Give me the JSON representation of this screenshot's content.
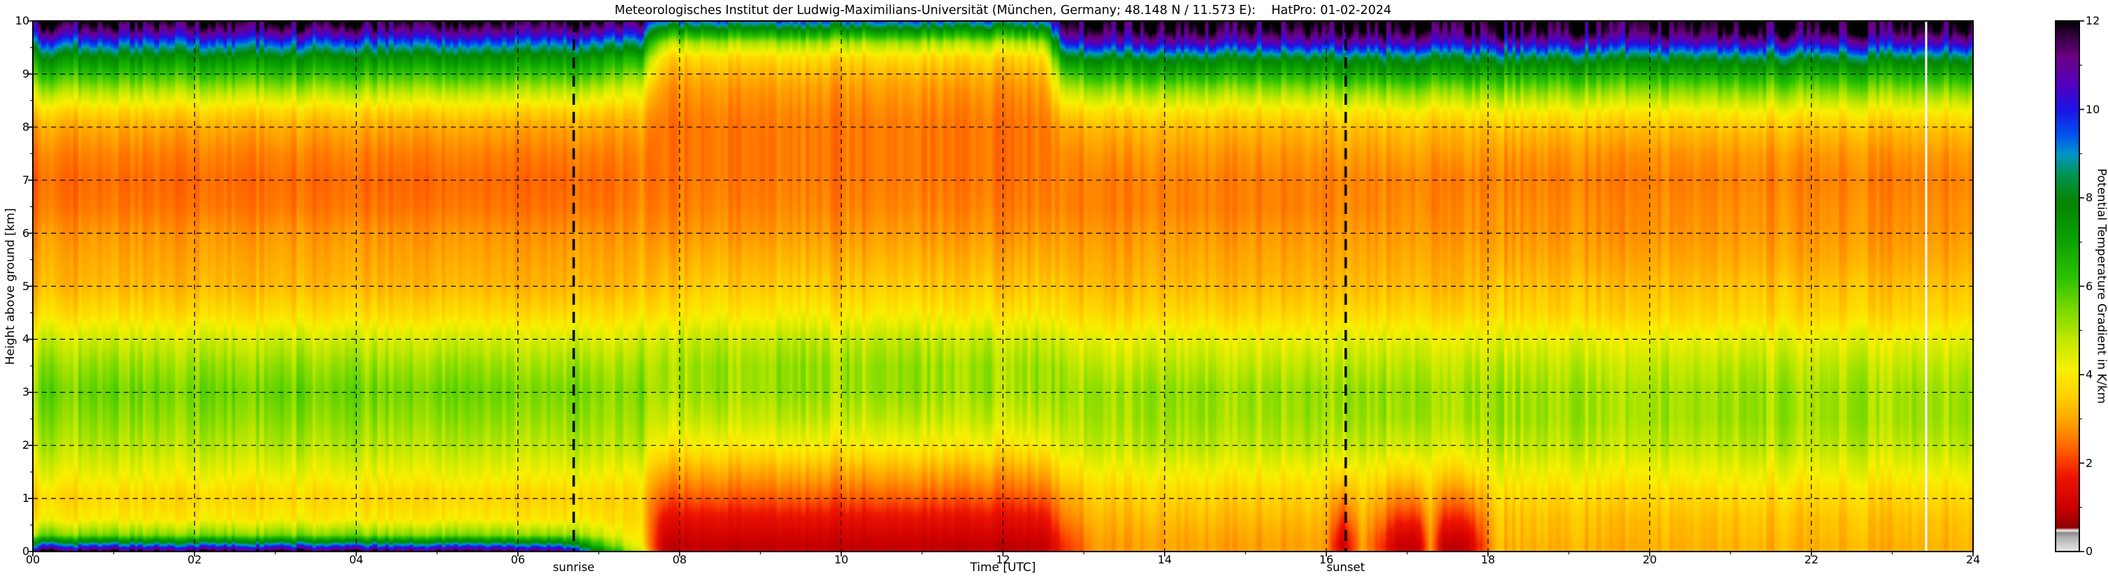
{
  "chart_data": {
    "type": "heatmap",
    "title": "Meteorologisches Institut der Ludwig-Maximilians-Universität (München, Germany; 48.148 N / 11.573 E):    HatPro: 01-02-2024",
    "xlabel": "Time [UTC]",
    "ylabel": "Height above ground [km]",
    "colorbar_label": "Potential Temperature Gradient in K/km",
    "x_range": [
      0,
      24
    ],
    "y_range": [
      0,
      10
    ],
    "colorbar_range": [
      0,
      12
    ],
    "grid_on": true,
    "x_ticks": [
      {
        "v": 0,
        "label": "00"
      },
      {
        "v": 2,
        "label": "02"
      },
      {
        "v": 4,
        "label": "04"
      },
      {
        "v": 6,
        "label": "06"
      },
      {
        "v": 8,
        "label": "08"
      },
      {
        "v": 10,
        "label": "10"
      },
      {
        "v": 12,
        "label": "12"
      },
      {
        "v": 14,
        "label": "14"
      },
      {
        "v": 16,
        "label": "16"
      },
      {
        "v": 18,
        "label": "18"
      },
      {
        "v": 20,
        "label": "20"
      },
      {
        "v": 22,
        "label": "22"
      },
      {
        "v": 24,
        "label": "24"
      }
    ],
    "y_ticks": [
      {
        "v": 0,
        "label": "0"
      },
      {
        "v": 1,
        "label": "1"
      },
      {
        "v": 2,
        "label": "2"
      },
      {
        "v": 3,
        "label": "3"
      },
      {
        "v": 4,
        "label": "4"
      },
      {
        "v": 5,
        "label": "5"
      },
      {
        "v": 6,
        "label": "6"
      },
      {
        "v": 7,
        "label": "7"
      },
      {
        "v": 8,
        "label": "8"
      },
      {
        "v": 9,
        "label": "9"
      },
      {
        "v": 10,
        "label": "10"
      }
    ],
    "colorbar_ticks": [
      {
        "v": 0,
        "label": "0"
      },
      {
        "v": 2,
        "label": "2"
      },
      {
        "v": 4,
        "label": "4"
      },
      {
        "v": 6,
        "label": "6"
      },
      {
        "v": 8,
        "label": "8"
      },
      {
        "v": 10,
        "label": "10"
      },
      {
        "v": 12,
        "label": "12"
      }
    ],
    "annotations": [
      {
        "t": 6.69,
        "label": "sunrise"
      },
      {
        "t": 16.24,
        "label": "sunset"
      }
    ],
    "missing_data_times": [
      23.42
    ],
    "colormap": [
      [
        0,
        "#e6e6e6"
      ],
      [
        0.3,
        "#b4b4b4"
      ],
      [
        0.42,
        "#8a8a8a"
      ],
      [
        0.46,
        "#ffffff"
      ],
      [
        0.52,
        "#8c0000"
      ],
      [
        1,
        "#cc0000"
      ],
      [
        1.7,
        "#ee1500"
      ],
      [
        2.3,
        "#ff6000"
      ],
      [
        2.9,
        "#ffa000"
      ],
      [
        3.5,
        "#ffd000"
      ],
      [
        4.1,
        "#f8f000"
      ],
      [
        4.8,
        "#c0e800"
      ],
      [
        5.5,
        "#76d800"
      ],
      [
        6.2,
        "#2cc200"
      ],
      [
        7.1,
        "#0aa000"
      ],
      [
        7.9,
        "#068400"
      ],
      [
        8.5,
        "#00944c"
      ],
      [
        9,
        "#0096c8"
      ],
      [
        9.4,
        "#0055f0"
      ],
      [
        10,
        "#1c14e4"
      ],
      [
        10.6,
        "#5400bc"
      ],
      [
        11.2,
        "#6c0084"
      ],
      [
        11.7,
        "#30003c"
      ],
      [
        12,
        "#000000"
      ]
    ],
    "grid": {
      "units": "K/km",
      "heights_km": [
        0,
        0.1,
        0.3,
        0.6,
        1,
        1.5,
        2,
        2.5,
        3,
        3.5,
        4,
        4.5,
        5,
        5.5,
        6,
        6.5,
        7,
        7.5,
        8,
        8.3,
        8.7,
        9,
        9.3,
        9.6,
        9.8,
        10
      ],
      "profiles": {
        "night": [
          11.8,
          9.5,
          5.5,
          4.0,
          3.6,
          4.3,
          4.9,
          5.3,
          5.6,
          5.2,
          4.6,
          3.7,
          3.2,
          3.0,
          2.8,
          2.5,
          2.4,
          2.6,
          3.0,
          3.6,
          5.0,
          6.2,
          7.5,
          9.5,
          11.0,
          12.0
        ],
        "night_fading": [
          8.0,
          6.5,
          4.8,
          3.9,
          3.6,
          4.3,
          4.9,
          5.2,
          5.4,
          5.1,
          4.5,
          3.7,
          3.2,
          3.0,
          2.8,
          2.5,
          2.4,
          2.6,
          3.0,
          3.5,
          4.8,
          6.0,
          7.2,
          9.2,
          10.8,
          12.0
        ],
        "morning_transition": [
          4.5,
          4.0,
          3.8,
          3.6,
          3.5,
          4.1,
          4.8,
          5.1,
          5.3,
          5.0,
          4.5,
          3.7,
          3.2,
          3.0,
          2.8,
          2.6,
          2.5,
          2.6,
          2.9,
          3.3,
          4.2,
          5.2,
          6.5,
          8.5,
          10.0,
          11.2
        ],
        "day": [
          1.0,
          0.9,
          1.1,
          1.5,
          2.2,
          3.0,
          4.0,
          4.7,
          5.1,
          5.1,
          4.7,
          3.9,
          3.4,
          3.1,
          2.8,
          2.6,
          2.5,
          2.5,
          2.5,
          2.6,
          2.8,
          3.1,
          3.6,
          5.0,
          7.0,
          9.2
        ],
        "midday_end": [
          2.0,
          2.0,
          2.2,
          2.6,
          3.0,
          3.8,
          4.5,
          4.9,
          5.1,
          4.9,
          4.4,
          3.7,
          3.3,
          3.0,
          2.8,
          2.6,
          2.6,
          2.7,
          3.0,
          3.6,
          4.8,
          6.0,
          7.8,
          10.2,
          11.5,
          12.0
        ],
        "evening": [
          3.0,
          2.9,
          3.0,
          3.2,
          3.5,
          4.1,
          4.8,
          5.1,
          5.2,
          4.8,
          4.3,
          3.6,
          3.2,
          3.0,
          2.8,
          2.6,
          2.6,
          2.8,
          3.2,
          3.8,
          5.2,
          6.5,
          8.0,
          10.5,
          11.5,
          12.0
        ],
        "evening_red": [
          1.0,
          0.9,
          1.2,
          1.8,
          2.6,
          3.6,
          4.5,
          5.0,
          5.1,
          4.8,
          4.3,
          3.6,
          3.2,
          3.0,
          2.8,
          2.7,
          2.6,
          2.9,
          3.3,
          4.0,
          5.4,
          6.8,
          8.2,
          10.5,
          11.5,
          12.0
        ],
        "late_night": [
          3.2,
          3.1,
          3.2,
          3.3,
          3.6,
          4.2,
          4.8,
          5.1,
          5.1,
          4.8,
          4.3,
          3.6,
          3.3,
          3.0,
          2.8,
          2.7,
          2.6,
          2.8,
          3.3,
          4.0,
          5.4,
          6.6,
          8.2,
          10.5,
          11.6,
          12.0
        ]
      },
      "columns": [
        {
          "t": 0,
          "p": "night"
        },
        {
          "t": 0.5,
          "p": "night"
        },
        {
          "t": 1,
          "p": "night"
        },
        {
          "t": 1.5,
          "p": "night"
        },
        {
          "t": 2,
          "p": "night"
        },
        {
          "t": 2.5,
          "p": "night"
        },
        {
          "t": 3,
          "p": "night"
        },
        {
          "t": 3.5,
          "p": "night"
        },
        {
          "t": 4,
          "p": "night"
        },
        {
          "t": 4.5,
          "p": "night"
        },
        {
          "t": 5,
          "p": "night"
        },
        {
          "t": 5.5,
          "p": "night"
        },
        {
          "t": 6,
          "p": "night"
        },
        {
          "t": 6.5,
          "p": "night"
        },
        {
          "t": 7,
          "p": "night_fading"
        },
        {
          "t": 7.5,
          "p": "morning_transition"
        },
        {
          "t": 7.8,
          "p": "day"
        },
        {
          "t": 9,
          "p": "day"
        },
        {
          "t": 10,
          "p": "day"
        },
        {
          "t": 11,
          "p": "day"
        },
        {
          "t": 12,
          "p": "day"
        },
        {
          "t": 12.5,
          "p": "day"
        },
        {
          "t": 12.8,
          "p": "midday_end"
        },
        {
          "t": 13.2,
          "p": "evening"
        },
        {
          "t": 14,
          "p": "evening"
        },
        {
          "t": 15,
          "p": "evening"
        },
        {
          "t": 16,
          "p": "evening"
        },
        {
          "t": 16.2,
          "p": "evening_red"
        },
        {
          "t": 16.45,
          "p": "evening"
        },
        {
          "t": 16.9,
          "p": "evening_red"
        },
        {
          "t": 17.15,
          "p": "evening_red"
        },
        {
          "t": 17.3,
          "p": "evening"
        },
        {
          "t": 17.45,
          "p": "evening_red"
        },
        {
          "t": 17.75,
          "p": "evening_red"
        },
        {
          "t": 18.1,
          "p": "late_night"
        },
        {
          "t": 19,
          "p": "late_night"
        },
        {
          "t": 20,
          "p": "late_night"
        },
        {
          "t": 21,
          "p": "late_night"
        },
        {
          "t": 22,
          "p": "late_night"
        },
        {
          "t": 23,
          "p": "late_night"
        },
        {
          "t": 24,
          "p": "late_night"
        }
      ]
    }
  }
}
